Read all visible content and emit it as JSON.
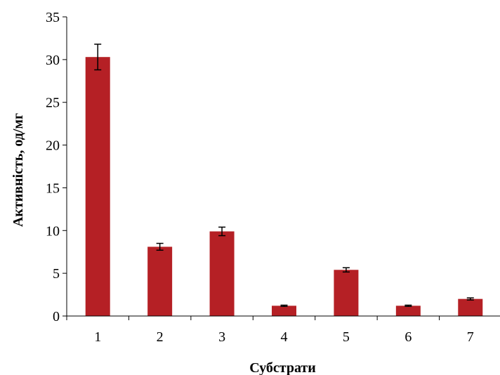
{
  "chart_data": {
    "type": "bar",
    "title": "",
    "xlabel": "Субстрати",
    "ylabel": "Активність, од/мг",
    "categories": [
      "1",
      "2",
      "3",
      "4",
      "5",
      "6",
      "7"
    ],
    "values": [
      30.3,
      8.1,
      9.9,
      1.2,
      5.4,
      1.2,
      2.0
    ],
    "errors": [
      1.5,
      0.4,
      0.5,
      0.07,
      0.25,
      0.07,
      0.12
    ],
    "ylim": [
      0,
      35
    ],
    "yticks": [
      "0",
      "5",
      "10",
      "15",
      "20",
      "25",
      "30",
      "35"
    ],
    "grid": false,
    "legend": "none",
    "bar_color": "#b52025",
    "error_bar_color": "#000000"
  }
}
